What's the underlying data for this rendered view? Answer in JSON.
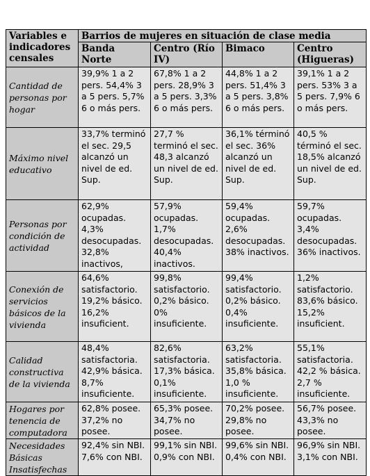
{
  "table": {
    "corner_header": "Variables e indicadores censales",
    "group_header": "Barrios de mujeres en situación de clase media",
    "columns": [
      "Banda Norte",
      "Centro (Río IV)",
      "Bimaco",
      "Centro (Higueras)"
    ],
    "rows": [
      {
        "label": "Cantidad de personas por hogar",
        "cells": [
          "39,9% 1 a 2 pers. 54,4% 3 a 5 pers. 5,7% 6 o más pers.",
          "67,8% 1 a 2 pers. 28,9% 3 a 5 pers. 3,3% 6 o más pers.",
          "44,8% 1 a 2 pers. 51,4% 3 a 5 pers. 3,8% 6 o más pers.",
          "39,1% 1 a 2 pers. 53% 3 a 5 pers. 7,9% 6 o más pers."
        ]
      },
      {
        "label": "Máximo nivel educativo",
        "cells": [
          "33,7% terminó el sec. 29,5 alcanzó un nivel de ed. Sup.",
          "27,7 % terminó el sec. 48,3 alcanzó un nivel de ed. Sup.",
          "36,1% términó el sec. 36% alcanzó un nivel de ed. Sup.",
          "40,5 % términó el sec. 18,5% alcanzó un nivel de ed. Sup."
        ]
      },
      {
        "label": "Personas por condición de actividad",
        "cells": [
          "62,9% ocupadas. 4,3% desocupadas. 32,8% inactivos,",
          "57,9% ocupadas. 1,7% desocupadas. 40,4% inactivos.",
          "59,4% ocupadas. 2,6% desocupadas. 38% inactivos.",
          "59,7% ocupadas. 3,4% desocupadas. 36% inactivos."
        ]
      },
      {
        "label": "Conexión de servicios básicos de la vivienda",
        "cells": [
          "64,6% satisfactorio. 19,2% básico. 16,2% insuficient.",
          "99,8% satisfactorio. 0,2% básico. 0% insuficiente.",
          "99,4% satisfactorio. 0,2% básico. 0,4% insuficiente.",
          "1,2% satisfactorio. 83,6% básico. 15,2% insuficient."
        ]
      },
      {
        "label": "Calidad constructiva de la vivienda",
        "cells": [
          "48,4% satisfactoria. 42,9% básica. 8,7% insuficiente.",
          "82,6% satisfactoria. 17,3% básica. 0,1% insuficiente.",
          "63,2% satisfactoria. 35,8% básica. 1,0 % insuficiente.",
          "55,1% satisfactoria. 42,2 % básica. 2,7 % insuficiente."
        ]
      },
      {
        "label": "Hogares por tenencia de computadora",
        "cells": [
          "62,8% posee. 37,2% no posee.",
          "65,3% posee. 34,7% no posee.",
          "70,2% posee. 29,8% no posee.",
          "56,7% posee. 43,3% no posee."
        ]
      },
      {
        "label": "Necesidades Básicas Insatisfechas",
        "cells": [
          "92,4% sin NBI. 7,6% con NBI.",
          "99,1% sin NBI. 0,9% con NBI.",
          "99,6% sin NBI. 0,4% con NBI.",
          "96,9% sin NBI. 3,1% con NBI."
        ]
      }
    ]
  }
}
